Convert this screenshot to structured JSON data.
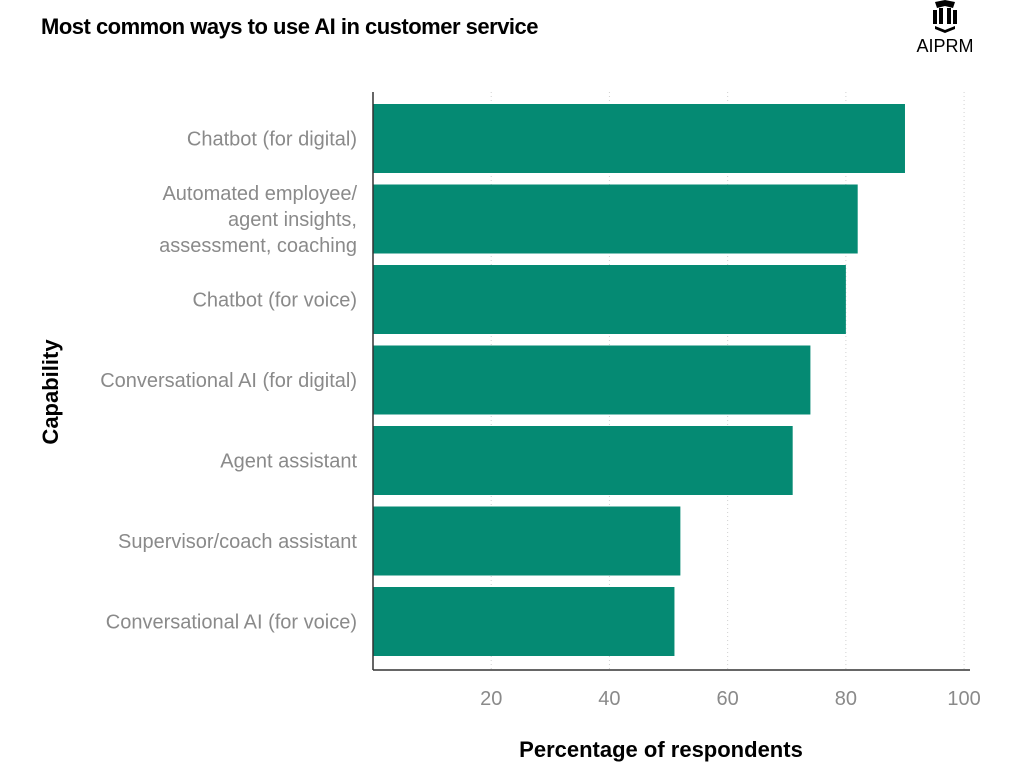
{
  "header": {
    "title": "Most common ways to use AI in customer service",
    "brand": "AIPRM"
  },
  "colors": {
    "bar": "#058a73",
    "axis": "#333333",
    "grid": "#d0d0d0",
    "tick_text": "#8a8a8a"
  },
  "chart_data": {
    "type": "bar",
    "orientation": "horizontal",
    "title": "Most common ways to use AI in customer service",
    "xlabel": "Percentage of respondents",
    "ylabel": "Capability",
    "categories": [
      [
        "Chatbot (for digital)"
      ],
      [
        "Automated employee/",
        "agent insights,",
        "assessment, coaching"
      ],
      [
        "Chatbot (for voice)"
      ],
      [
        "Conversational AI (for digital)"
      ],
      [
        "Agent assistant"
      ],
      [
        "Supervisor/coach assistant"
      ],
      [
        "Conversational AI (for voice)"
      ]
    ],
    "values": [
      90,
      82,
      80,
      74,
      71,
      52,
      51
    ],
    "xlim": [
      0,
      101
    ],
    "xticks": [
      20,
      40,
      60,
      80,
      100
    ],
    "grid": "vertical dotted"
  }
}
